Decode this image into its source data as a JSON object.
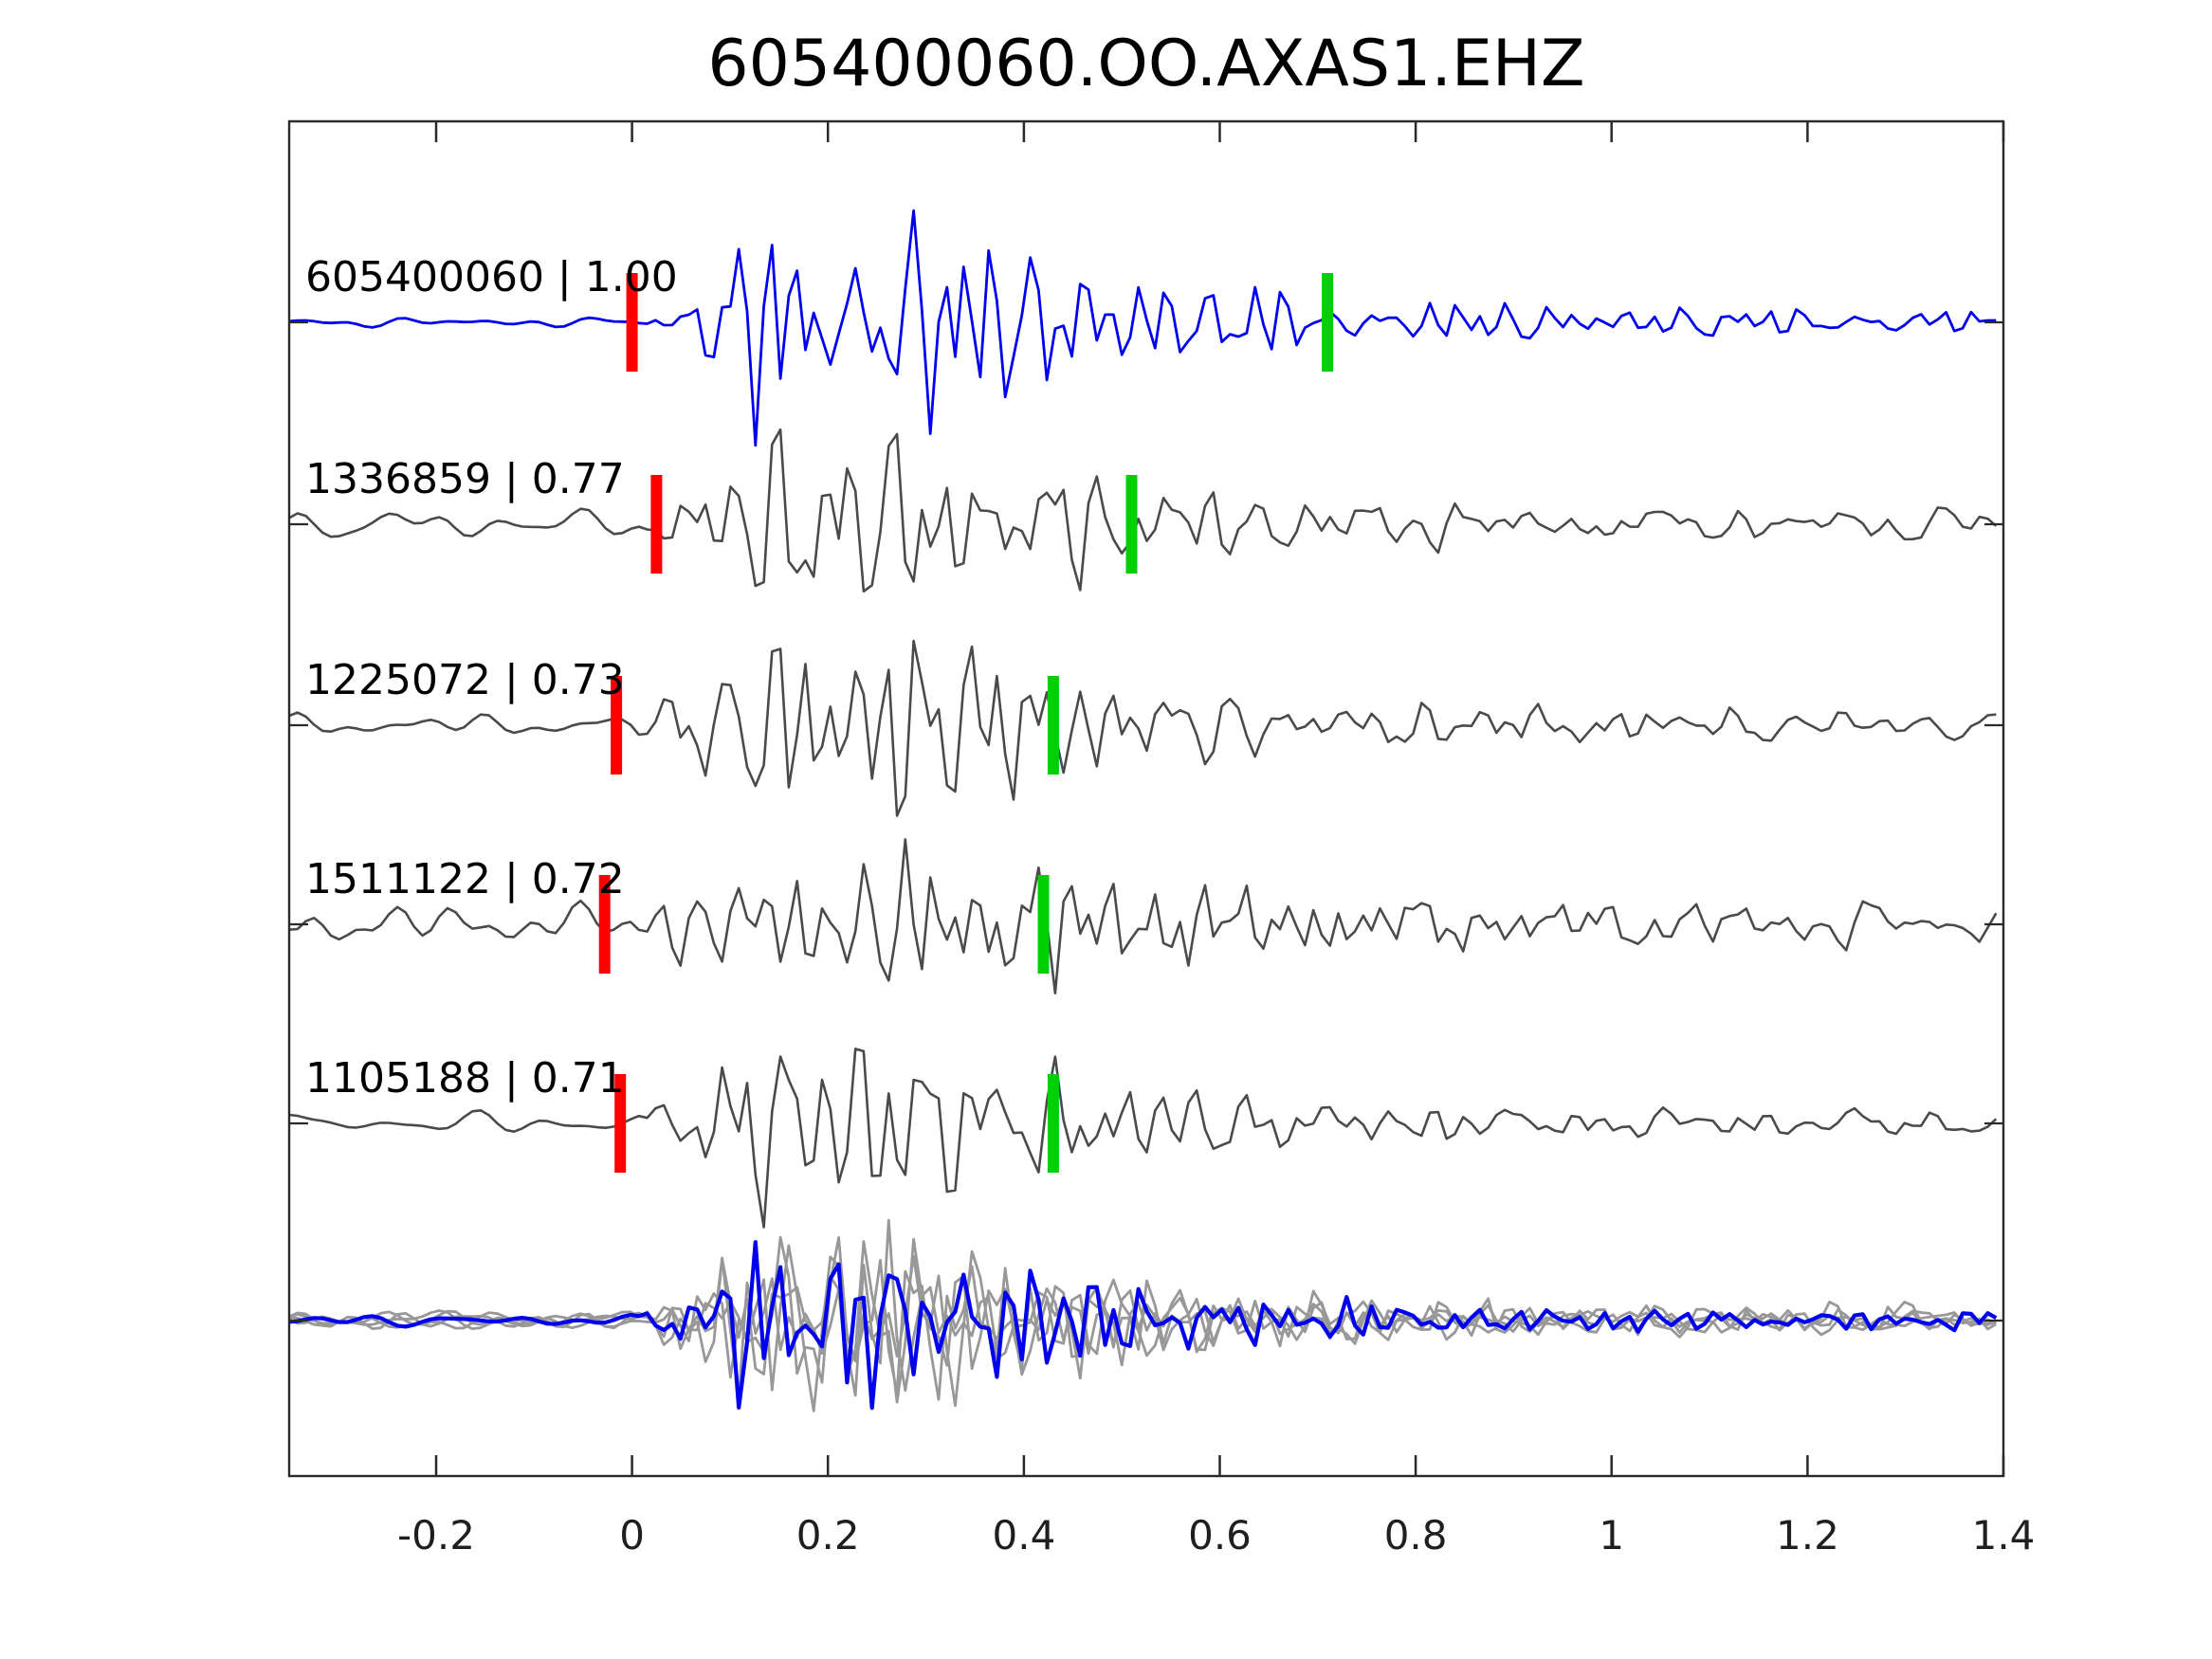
{
  "title": "605400060.OO.AXAS1.EHZ",
  "palette": {
    "blue": "#0000ee",
    "gray": "#4a4a4a",
    "overlay_gray": "#989898",
    "red": "#ff0000",
    "green": "#00d000",
    "axis": "#2a2a2a"
  },
  "chart_data": {
    "type": "line",
    "title": "605400060.OO.AXAS1.EHZ",
    "subtitle": "",
    "xlabel": "",
    "ylabel": "",
    "xlim": [
      -0.35,
      1.4
    ],
    "x_tick_values": [
      -0.2,
      0,
      0.2,
      0.4,
      0.6,
      0.8,
      1,
      1.2,
      1.4
    ],
    "x_tick_labels": [
      "-0.2",
      "0",
      "0.2",
      "0.4",
      "0.6",
      "0.8",
      "1",
      "1.2",
      "1.4"
    ],
    "grid": false,
    "legend": false,
    "description": "Template-matching seismogram comparison: template trace (blue), four detected event traces (dark gray) with correlation coefficients, red P-pick and green S-pick markers, and bottom overlay of all aligned traces.",
    "traces": [
      {
        "label": "605400060 | 1.00",
        "id": "605400060",
        "correlation": 1.0,
        "role": "template",
        "color": "blue",
        "red_pick_t": 0.0,
        "green_pick_t": 0.71,
        "amp": 115,
        "noise": 3.5,
        "onset": 0.015,
        "freq": 30,
        "seed": 11,
        "width": 2.8
      },
      {
        "label": "1336859 | 0.77",
        "id": "1336859",
        "correlation": 0.77,
        "role": "detection",
        "color": "gray",
        "red_pick_t": 0.025,
        "green_pick_t": 0.51,
        "amp": 95,
        "noise": 11,
        "onset": 0.01,
        "freq": 26,
        "seed": 22,
        "width": 2.6
      },
      {
        "label": "1225072 | 0.73",
        "id": "1225072",
        "correlation": 0.73,
        "role": "detection",
        "color": "gray",
        "red_pick_t": -0.016,
        "green_pick_t": 0.43,
        "amp": 100,
        "noise": 8,
        "onset": -0.005,
        "freq": 28,
        "seed": 33,
        "width": 2.6
      },
      {
        "label": "1511122 | 0.72",
        "id": "1511122",
        "correlation": 0.72,
        "role": "detection",
        "color": "gray",
        "red_pick_t": -0.028,
        "green_pick_t": 0.42,
        "amp": 95,
        "noise": 15,
        "onset": -0.01,
        "freq": 30,
        "seed": 44,
        "width": 2.6
      },
      {
        "label": "1105188 | 0.71",
        "id": "1105188",
        "correlation": 0.71,
        "role": "detection",
        "color": "gray",
        "red_pick_t": -0.012,
        "green_pick_t": 0.43,
        "amp": 95,
        "noise": 8,
        "onset": -0.005,
        "freq": 27,
        "seed": 55,
        "width": 2.6
      },
      {
        "label": null,
        "role": "overlay",
        "members": [
          {
            "color": "overlay_gray",
            "seed": 66,
            "amp": 85,
            "noise": 7,
            "onset": 0.0,
            "freq": 29,
            "width": 2.8
          },
          {
            "color": "overlay_gray",
            "seed": 77,
            "amp": 85,
            "noise": 7,
            "onset": 0.0,
            "freq": 27,
            "width": 2.8
          },
          {
            "color": "overlay_gray",
            "seed": 88,
            "amp": 85,
            "noise": 7,
            "onset": 0.0,
            "freq": 31,
            "width": 2.8
          },
          {
            "color": "overlay_gray",
            "seed": 99,
            "amp": 85,
            "noise": 7,
            "onset": 0.0,
            "freq": 28,
            "width": 2.8
          },
          {
            "color": "blue",
            "seed": 12,
            "amp": 85,
            "noise": 4,
            "onset": 0.0,
            "freq": 29,
            "width": 4.2
          }
        ]
      }
    ]
  }
}
